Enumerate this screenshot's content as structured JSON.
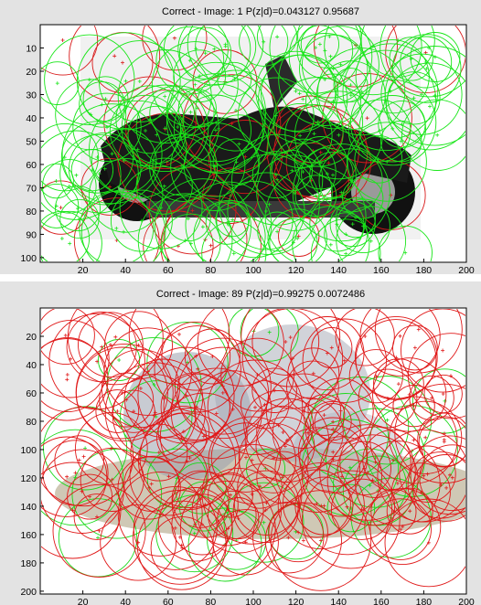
{
  "panels": [
    {
      "title": "Correct - Image: 1 P(z|d)=0.043127       0.95687",
      "x_ticks": [
        "20",
        "40",
        "60",
        "80",
        "100",
        "120",
        "140",
        "160",
        "180",
        "200"
      ],
      "y_ticks": [
        "10",
        "20",
        "30",
        "40",
        "50",
        "60",
        "70",
        "80",
        "90",
        "100"
      ],
      "x_range": [
        0,
        200
      ],
      "y_range": [
        0,
        102
      ],
      "y_reversed": true,
      "image_subject": "motorbike",
      "dominant_circle_color": "#19e619",
      "minority_circle_color": "#d81a1a",
      "circle_count_dominant": 140,
      "circle_count_minority": 28
    },
    {
      "title": "Correct - Image: 89 P(z|d)=0.99275   0.0072486",
      "x_ticks": [
        "20",
        "40",
        "60",
        "80",
        "100",
        "120",
        "140",
        "160",
        "180",
        "200"
      ],
      "y_ticks": [
        "20",
        "40",
        "60",
        "80",
        "100",
        "120",
        "140",
        "160",
        "180",
        "200"
      ],
      "x_range": [
        0,
        200
      ],
      "y_range": [
        0,
        202
      ],
      "y_reversed": true,
      "image_subject": "face",
      "dominant_circle_color": "#e01818",
      "minority_circle_color": "#19d919",
      "circle_count_dominant": 150,
      "circle_count_minority": 30
    }
  ],
  "colors": {
    "frame_bg": "#e3e3e3",
    "axes_bg": "#ffffff",
    "green": "#19e619",
    "red": "#d81a1a",
    "dark": "#111111",
    "gray": "#8a8a8a",
    "tan": "#a89a78"
  }
}
